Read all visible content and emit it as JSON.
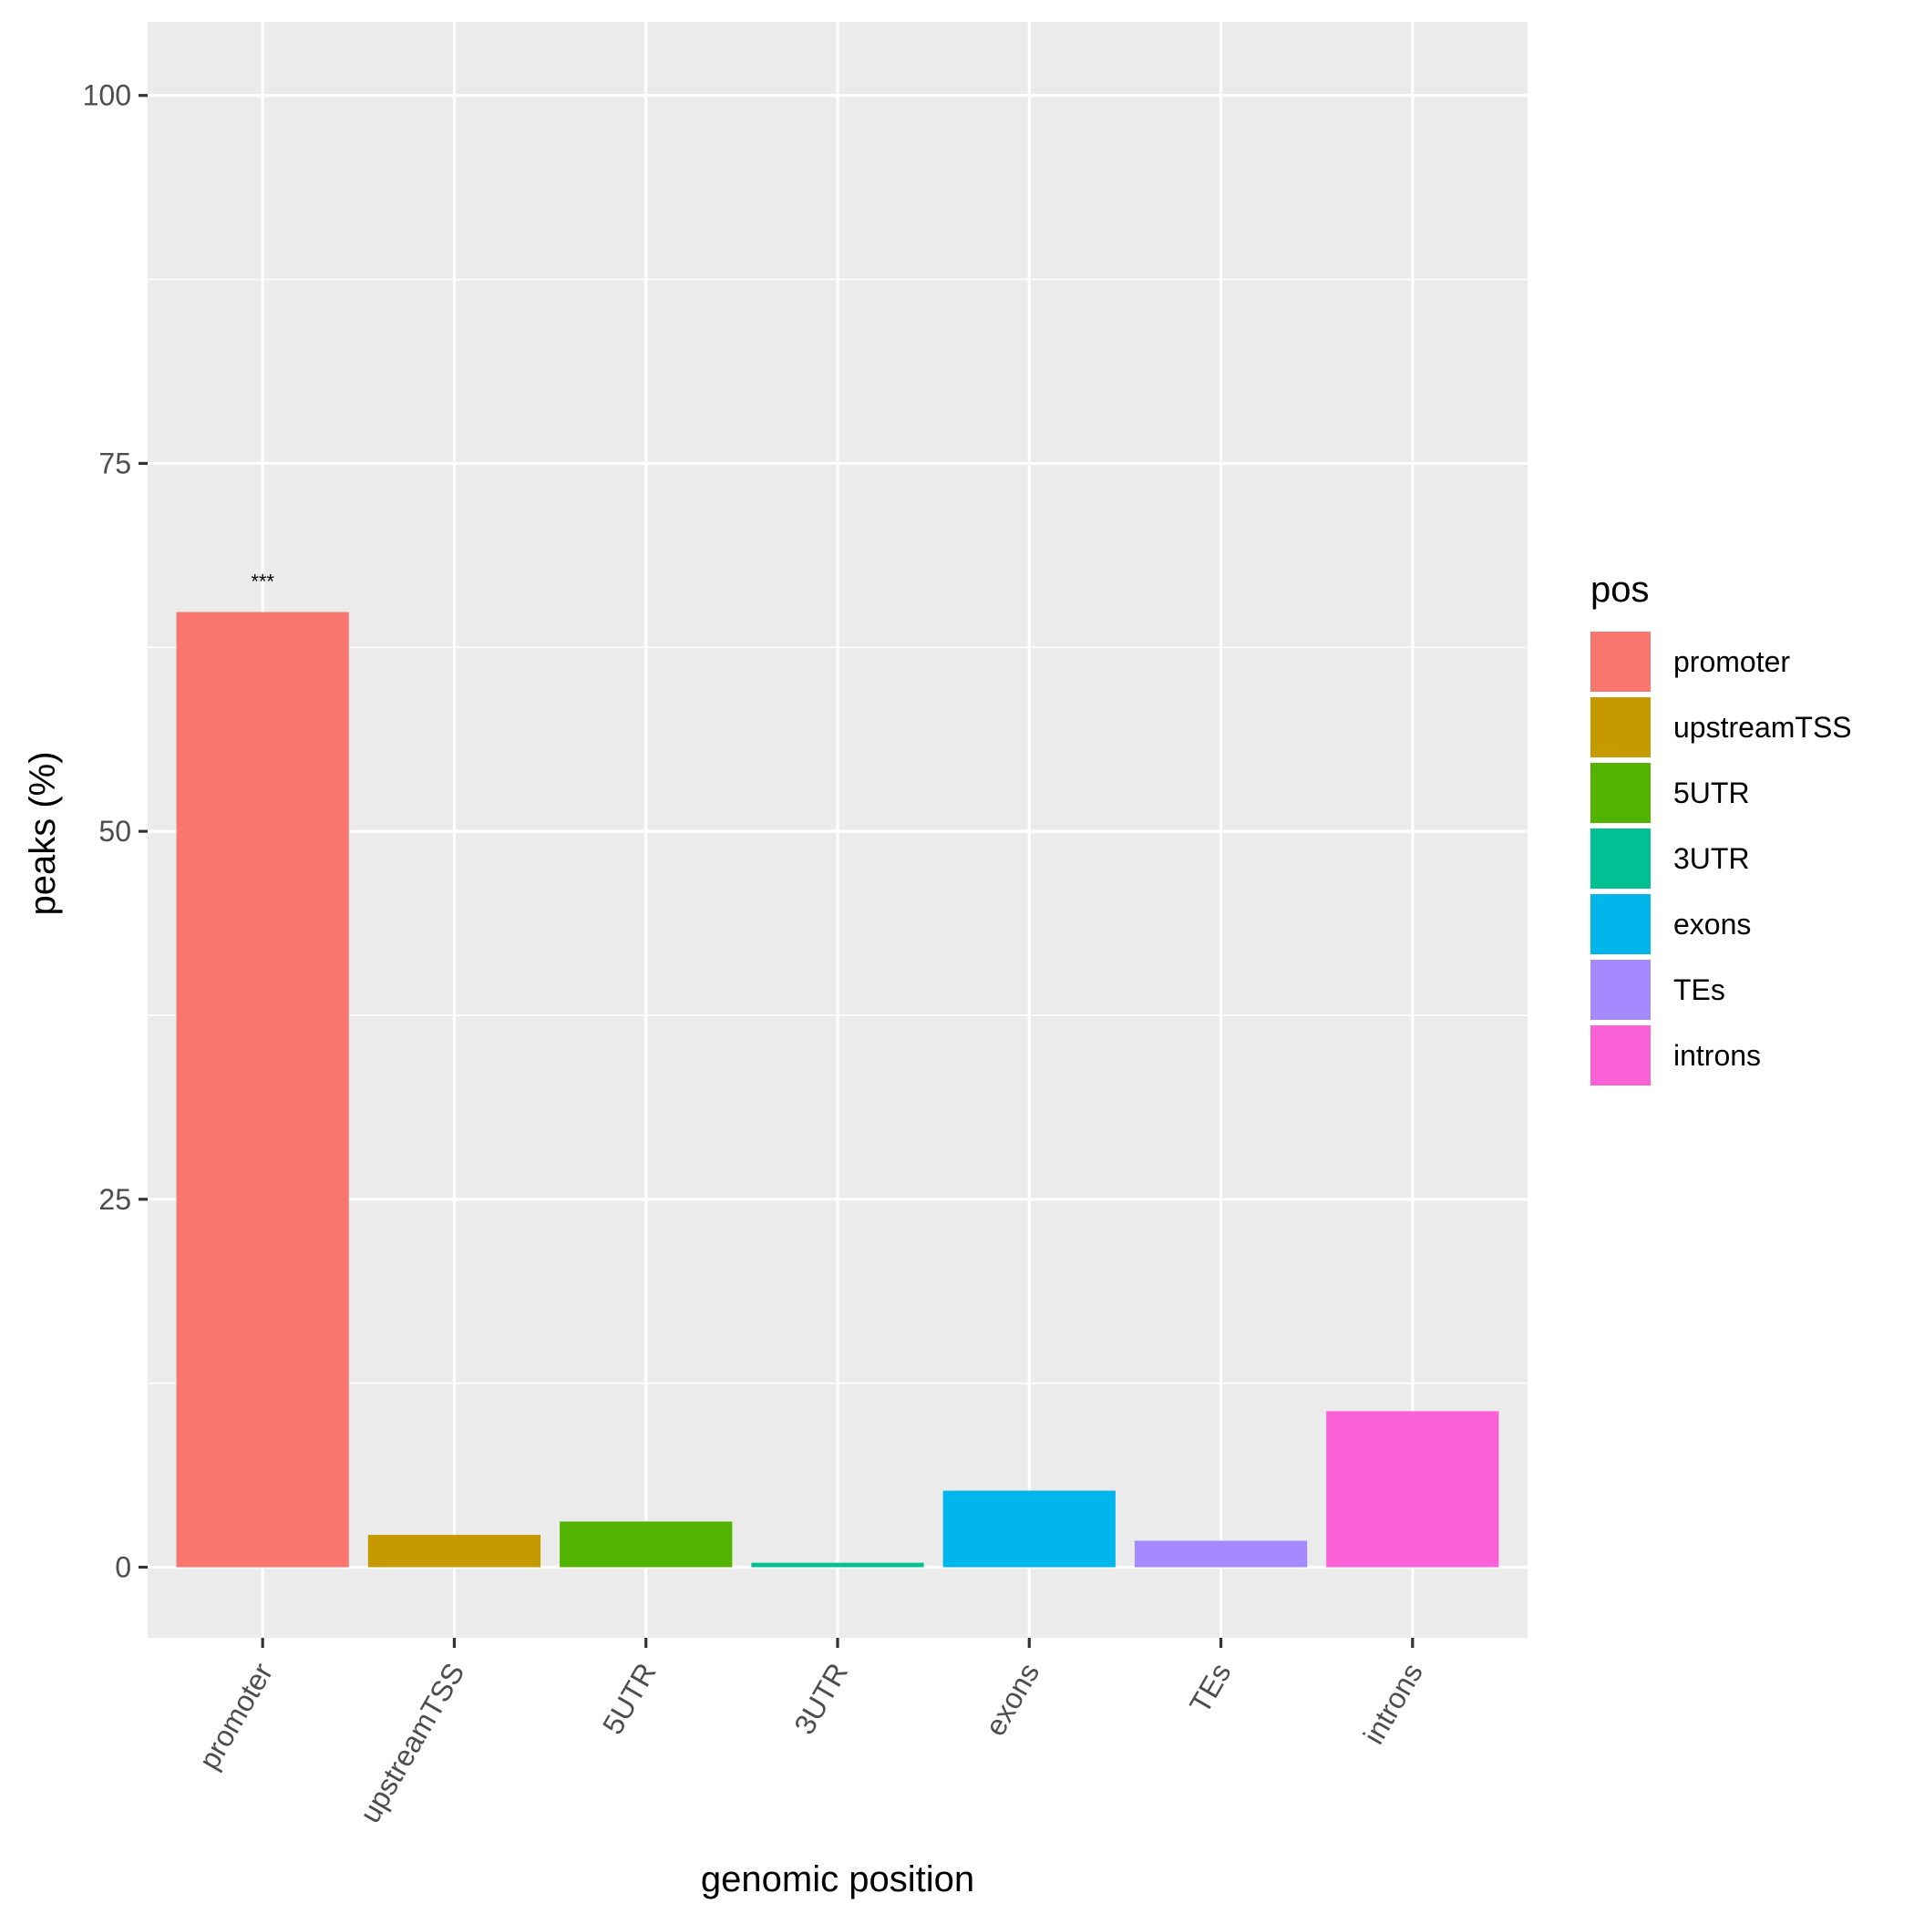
{
  "chart_data": {
    "type": "bar",
    "categories": [
      "promoter",
      "upstreamTSS",
      "5UTR",
      "3UTR",
      "exons",
      "TEs",
      "introns"
    ],
    "values": [
      64.9,
      2.2,
      3.1,
      0.3,
      5.2,
      1.8,
      10.6
    ],
    "colors": [
      "#F8766D",
      "#C49A00",
      "#53B400",
      "#00C094",
      "#00B6EB",
      "#A58AFF",
      "#FB61D7"
    ],
    "annotations": [
      {
        "category": "promoter",
        "text": "***"
      }
    ],
    "xlabel": "genomic position",
    "ylabel": "peaks (%)",
    "ylim": [
      -4.8,
      105
    ],
    "yticks": [
      0,
      25,
      50,
      75,
      100
    ],
    "y_minor_ticks": [
      12.5,
      37.5,
      62.5,
      87.5
    ],
    "grid": true,
    "legend": {
      "title": "pos",
      "position": "right",
      "items": [
        "promoter",
        "upstreamTSS",
        "5UTR",
        "3UTR",
        "exons",
        "TEs",
        "introns"
      ]
    },
    "panel_background": "#EBEBEB",
    "grid_color": "#FFFFFF"
  }
}
